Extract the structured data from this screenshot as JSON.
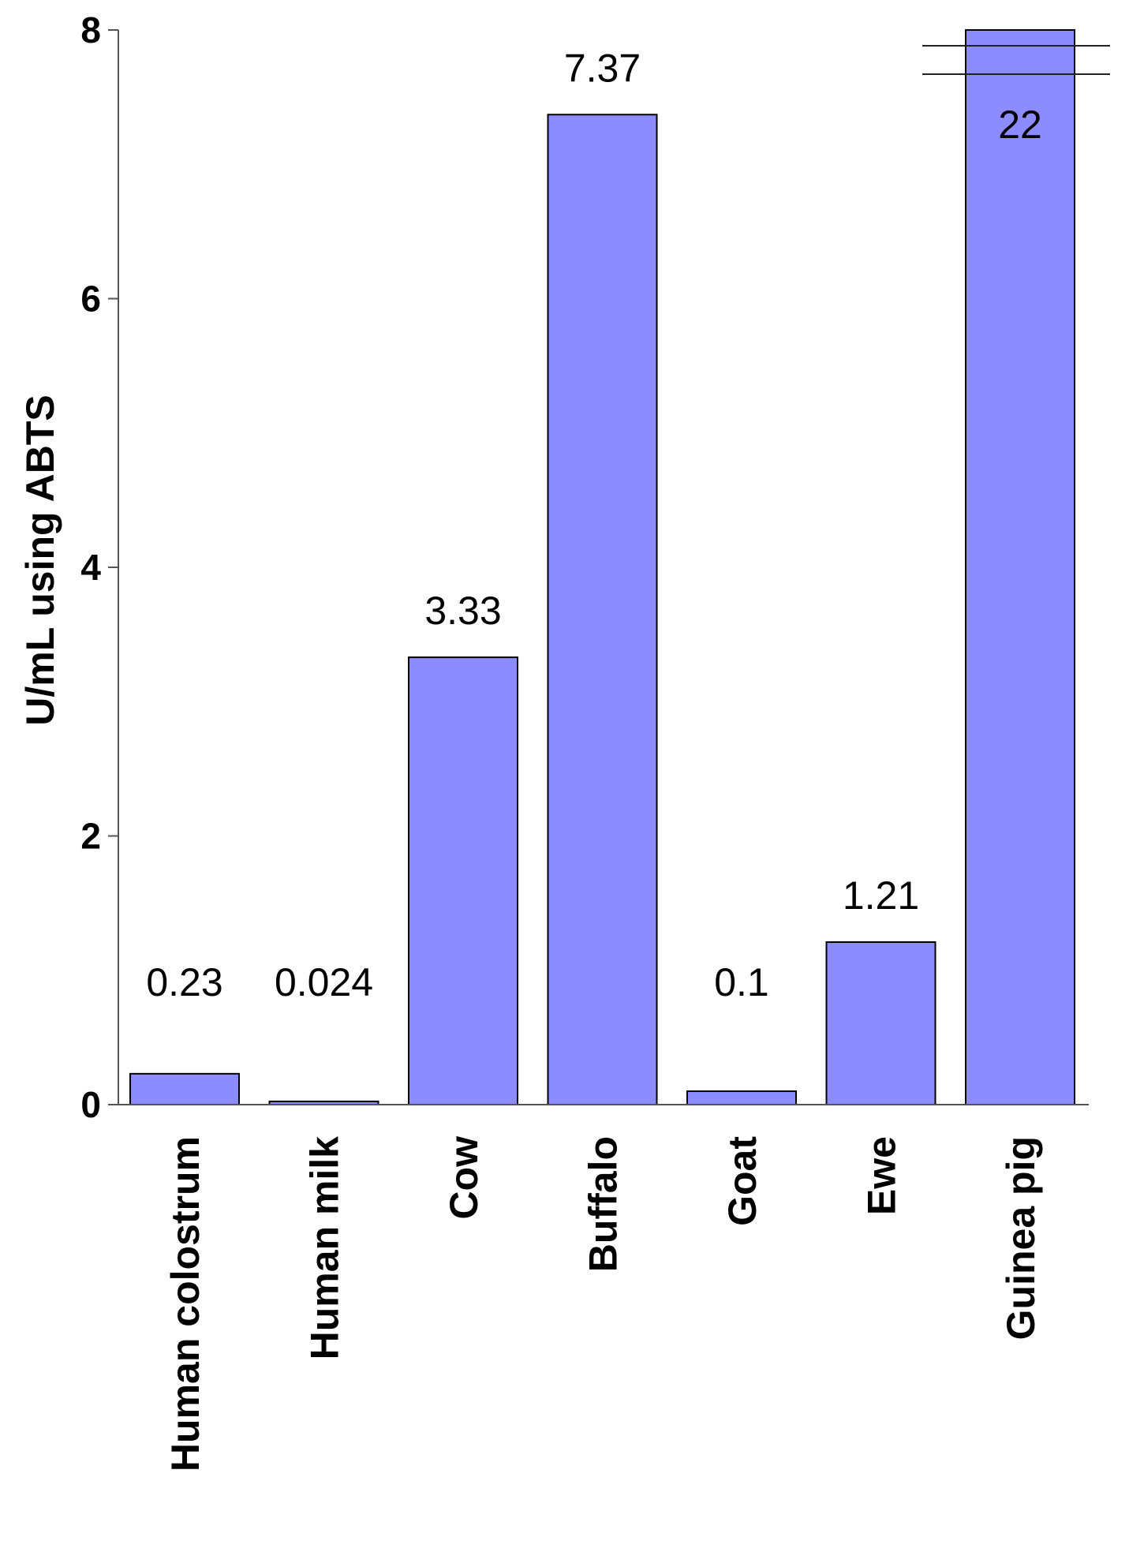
{
  "chart_data": {
    "type": "bar",
    "title": "",
    "xlabel": "",
    "ylabel": "U/mL using ABTS",
    "ylim": [
      0,
      8
    ],
    "yticks": [
      0,
      2,
      4,
      6,
      8
    ],
    "categories": [
      "Human colostrum",
      "Human milk",
      "Cow",
      "Buffalo",
      "Goat",
      "Ewe",
      "Guinea pig"
    ],
    "values": [
      0.23,
      0.024,
      3.33,
      7.37,
      0.1,
      1.21,
      22
    ],
    "data_labels": [
      "0.23",
      "0.024",
      "3.33",
      "7.37",
      "0.1",
      "1.21",
      "22"
    ],
    "axis_break": true,
    "bar_color": "#8c8cff",
    "bar_edge_color": "#000000",
    "grid": false,
    "legend": "none"
  }
}
